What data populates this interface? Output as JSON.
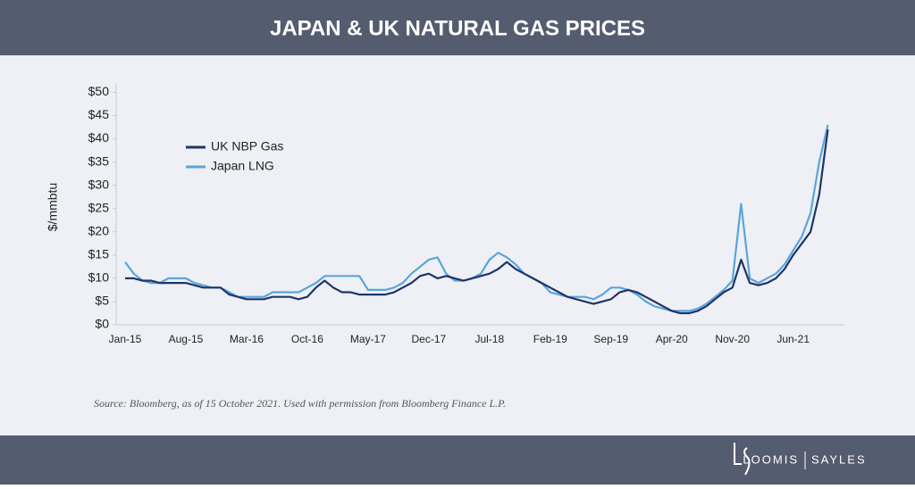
{
  "header": {
    "title": "JAPAN & UK NATURAL GAS PRICES"
  },
  "chart_data": {
    "type": "line",
    "y_label": "$/mmbtu",
    "categories": [
      "Jan-15",
      null,
      null,
      null,
      null,
      null,
      null,
      "Aug-15",
      null,
      null,
      null,
      null,
      null,
      null,
      "Mar-16",
      null,
      null,
      null,
      null,
      null,
      null,
      "Oct-16",
      null,
      null,
      null,
      null,
      null,
      null,
      "May-17",
      null,
      null,
      null,
      null,
      null,
      null,
      "Dec-17",
      null,
      null,
      null,
      null,
      null,
      null,
      "Jul-18",
      null,
      null,
      null,
      null,
      null,
      null,
      "Feb-19",
      null,
      null,
      null,
      null,
      null,
      null,
      "Sep-19",
      null,
      null,
      null,
      null,
      null,
      null,
      "Apr-20",
      null,
      null,
      null,
      null,
      null,
      null,
      "Nov-20",
      null,
      null,
      null,
      null,
      null,
      null,
      "Jun-21",
      null,
      null,
      null,
      null
    ],
    "series": [
      {
        "name": "UK NBP Gas",
        "color": "#1f3566",
        "values": [
          10,
          10,
          9.5,
          9.5,
          9,
          9,
          9,
          9,
          8.5,
          8,
          8,
          8,
          6.5,
          6,
          5.5,
          5.5,
          5.5,
          6,
          6,
          6,
          5.5,
          6,
          8,
          9.5,
          8,
          7,
          7,
          6.5,
          6.5,
          6.5,
          6.5,
          7,
          8,
          9,
          10.5,
          11,
          10,
          10.5,
          10,
          9.5,
          10,
          10.5,
          11,
          12,
          13.5,
          12,
          11,
          10,
          9,
          8,
          7,
          6,
          5.5,
          5,
          4.5,
          5,
          5.5,
          7,
          7.5,
          7,
          6,
          5,
          4,
          3,
          2.5,
          2.5,
          3,
          4,
          5.5,
          7,
          8,
          14,
          9,
          8.5,
          9,
          10,
          12,
          15,
          17.5,
          20,
          28,
          42
        ]
      },
      {
        "name": "Japan LNG",
        "color": "#5aa5dc",
        "values": [
          13.5,
          11,
          9.5,
          9,
          9,
          10,
          10,
          10,
          9,
          8.5,
          8,
          8,
          7,
          6,
          6,
          6,
          6,
          7,
          7,
          7,
          7,
          8,
          9,
          10.5,
          10.5,
          10.5,
          10.5,
          10.5,
          7.5,
          7.5,
          7.5,
          8,
          9,
          11,
          12.5,
          14,
          14.5,
          11,
          9.5,
          9.5,
          10,
          11,
          14,
          15.5,
          14.5,
          13,
          11,
          10,
          9,
          7,
          6.5,
          6,
          6,
          6,
          5.5,
          6.5,
          8,
          8,
          7.5,
          6.5,
          5,
          4,
          3.5,
          3,
          3,
          3,
          3.5,
          4.5,
          6,
          7.5,
          9.5,
          26,
          10,
          9,
          10,
          11,
          13,
          16,
          19,
          24,
          35,
          43
        ]
      }
    ],
    "ylim": [
      0,
      52
    ],
    "yticks": [
      {
        "value": 0,
        "label": "$0"
      },
      {
        "value": 5,
        "label": "$5"
      },
      {
        "value": 10,
        "label": "$10"
      },
      {
        "value": 15,
        "label": "$15"
      },
      {
        "value": 20,
        "label": "$20"
      },
      {
        "value": 25,
        "label": "$25"
      },
      {
        "value": 30,
        "label": "$30"
      },
      {
        "value": 35,
        "label": "$35"
      },
      {
        "value": 40,
        "label": "$40"
      },
      {
        "value": 45,
        "label": "$45"
      },
      {
        "value": 50,
        "label": "$50"
      }
    ],
    "legend": "upper left",
    "source": "Source: Bloomberg, as of 15 October 2021. Used with permission from Bloomberg Finance L.P."
  },
  "footer": {
    "logo_left": "LOOMIS",
    "logo_right": "SAYLES"
  }
}
